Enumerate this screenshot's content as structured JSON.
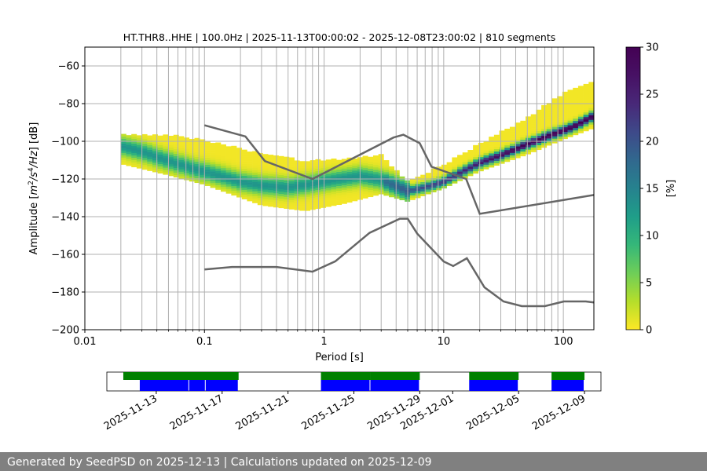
{
  "chart_data": {
    "type": "heatmap",
    "title": "HT.THR8..HHE | 100.0Hz | 2025-11-13T00:00:02 - 2025-12-08T23:00:02 | 810 segments",
    "xlabel": "Period [s]",
    "ylabel": "Amplitude [m²/s⁴/Hz] [dB]",
    "xscale": "log",
    "xlim": [
      0.01,
      180
    ],
    "ylim": [
      -200,
      -50
    ],
    "xticks": [
      {
        "value": 0.01,
        "label": "0.01"
      },
      {
        "value": 0.1,
        "label": "0.1"
      },
      {
        "value": 1,
        "label": "1"
      },
      {
        "value": 10,
        "label": "10"
      },
      {
        "value": 100,
        "label": "100"
      }
    ],
    "yticks": [
      {
        "value": -60,
        "label": "−60"
      },
      {
        "value": -80,
        "label": "−80"
      },
      {
        "value": -100,
        "label": "−100"
      },
      {
        "value": -120,
        "label": "−120"
      },
      {
        "value": -140,
        "label": "−140"
      },
      {
        "value": -160,
        "label": "−160"
      },
      {
        "value": -180,
        "label": "−180"
      },
      {
        "value": -200,
        "label": "−200"
      }
    ],
    "grid": true,
    "colorbar": {
      "label": "[%]",
      "range": [
        0,
        30
      ],
      "ticks": [
        "0",
        "5",
        "10",
        "15",
        "20",
        "25",
        "30"
      ],
      "colormap": "viridis_r"
    },
    "psd_mode": {
      "period": [
        0.02,
        0.03,
        0.05,
        0.08,
        0.12,
        0.2,
        0.3,
        0.5,
        0.8,
        1.2,
        2,
        3,
        5,
        7,
        10,
        14,
        20,
        30,
        50,
        80,
        120,
        180
      ],
      "db": [
        -103,
        -106,
        -111,
        -115,
        -118,
        -122,
        -124,
        -125,
        -123,
        -121,
        -119,
        -121,
        -127,
        -125,
        -122,
        -117,
        -112,
        -108,
        -102,
        -97,
        -93,
        -87
      ]
    },
    "psd_spread": {
      "period": [
        0.02,
        0.05,
        0.1,
        0.3,
        0.7,
        1.5,
        3,
        5,
        10,
        20,
        50,
        100,
        180
      ],
      "lower": [
        -112,
        -118,
        -123,
        -134,
        -137,
        -133,
        -128,
        -132,
        -125,
        -116,
        -107,
        -99,
        -93
      ],
      "upper": [
        -97,
        -97,
        -100,
        -107,
        -111,
        -110,
        -108,
        -122,
        -113,
        -102,
        -88,
        -75,
        -68
      ]
    },
    "noise_models": [
      {
        "name": "high",
        "period": [
          0.1,
          0.22,
          0.32,
          0.8,
          3.8,
          4.6,
          6.3,
          7.9,
          15.4,
          20,
          180
        ],
        "db": [
          -91.5,
          -97.4,
          -110.5,
          -120,
          -98,
          -96.5,
          -101,
          -113.5,
          -120,
          -138.5,
          -128.5
        ]
      },
      {
        "name": "low",
        "period": [
          0.1,
          0.17,
          0.4,
          0.8,
          1.24,
          2.4,
          4.3,
          5,
          6,
          10,
          12,
          15.6,
          21.9,
          31.6,
          45,
          70,
          101,
          154,
          180
        ],
        "db": [
          -168,
          -166.7,
          -166.7,
          -169.2,
          -163.7,
          -148.6,
          -141.1,
          -141.1,
          -149,
          -163.8,
          -166.2,
          -162.1,
          -177.5,
          -185,
          -187.5,
          -187.5,
          -185,
          -185,
          -185.5
        ]
      }
    ],
    "availability": {
      "ticks": [
        "2025-11-13",
        "2025-11-17",
        "2025-11-21",
        "2025-11-25",
        "2025-11-29",
        "2025-12-01",
        "2025-12-05",
        "2025-12-09"
      ],
      "range": [
        "2025-11-10",
        "2025-12-10"
      ],
      "green_spans": [
        [
          "2025-11-11",
          "2025-11-18"
        ],
        [
          "2025-11-23",
          "2025-11-26"
        ],
        [
          "2025-11-26",
          "2025-11-29"
        ],
        [
          "2025-12-02",
          "2025-12-05"
        ],
        [
          "2025-12-07",
          "2025-12-09"
        ]
      ],
      "blue_spans": [
        [
          "2025-11-12",
          "2025-11-15"
        ],
        [
          "2025-11-15",
          "2025-11-16"
        ],
        [
          "2025-11-16",
          "2025-11-18"
        ],
        [
          "2025-11-23",
          "2025-11-26"
        ],
        [
          "2025-11-26",
          "2025-11-29"
        ],
        [
          "2025-12-02",
          "2025-12-05"
        ],
        [
          "2025-12-07",
          "2025-12-09"
        ]
      ],
      "colors": {
        "green": "#008000",
        "blue": "#0000ff"
      }
    }
  },
  "footer": {
    "text": "Generated by SeedPSD on 2025-12-13 | Calculations updated on 2025-12-09"
  }
}
